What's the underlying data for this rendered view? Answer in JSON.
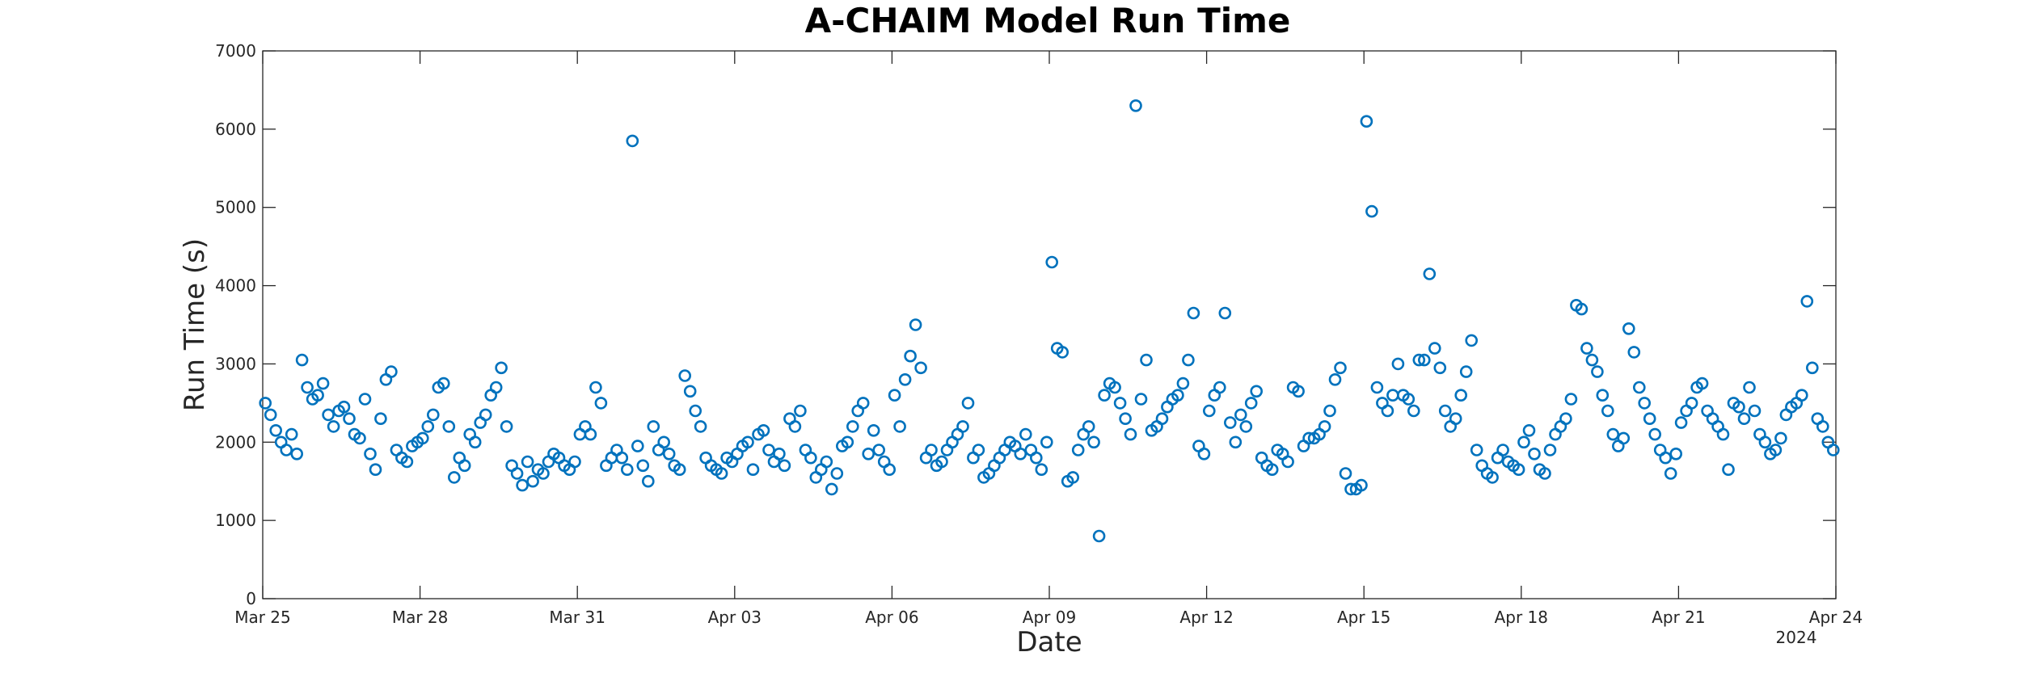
{
  "chart_data": {
    "type": "scatter",
    "title": "A-CHAIM Model Run Time",
    "xlabel": "Date",
    "ylabel": "Run Time (s)",
    "year_label": "2024",
    "xlim": [
      "2024-03-25",
      "2024-04-24"
    ],
    "ylim": [
      0,
      7000
    ],
    "x_ticks": [
      "Mar 25",
      "Mar 28",
      "Mar 31",
      "Apr 03",
      "Apr 06",
      "Apr 09",
      "Apr 12",
      "Apr 15",
      "Apr 18",
      "Apr 21",
      "Apr 24"
    ],
    "y_ticks": [
      "0",
      "1000",
      "2000",
      "3000",
      "4000",
      "5000",
      "6000",
      "7000"
    ],
    "marker": "circle",
    "marker_color": "#0072BD",
    "grid": false,
    "x": [
      "2024-03-25",
      "2024-03-25",
      "2024-03-25",
      "2024-03-25",
      "2024-03-25",
      "2024-03-25",
      "2024-03-25",
      "2024-03-25",
      "2024-03-25",
      "2024-03-25",
      "2024-03-26",
      "2024-03-26",
      "2024-03-26",
      "2024-03-26",
      "2024-03-26",
      "2024-03-26",
      "2024-03-26",
      "2024-03-26",
      "2024-03-26",
      "2024-03-26",
      "2024-03-27",
      "2024-03-27",
      "2024-03-27",
      "2024-03-27",
      "2024-03-27",
      "2024-03-27",
      "2024-03-27",
      "2024-03-27",
      "2024-03-27",
      "2024-03-27",
      "2024-03-28",
      "2024-03-28",
      "2024-03-28",
      "2024-03-28",
      "2024-03-28",
      "2024-03-28",
      "2024-03-28",
      "2024-03-28",
      "2024-03-28",
      "2024-03-28",
      "2024-03-29",
      "2024-03-29",
      "2024-03-29",
      "2024-03-29",
      "2024-03-29",
      "2024-03-29",
      "2024-03-29",
      "2024-03-29",
      "2024-03-29",
      "2024-03-29",
      "2024-03-30",
      "2024-03-30",
      "2024-03-30",
      "2024-03-30",
      "2024-03-30",
      "2024-03-30",
      "2024-03-30",
      "2024-03-30",
      "2024-03-30",
      "2024-03-30",
      "2024-03-31",
      "2024-03-31",
      "2024-03-31",
      "2024-03-31",
      "2024-03-31",
      "2024-03-31",
      "2024-03-31",
      "2024-03-31",
      "2024-03-31",
      "2024-03-31",
      "2024-04-01",
      "2024-04-01",
      "2024-04-01",
      "2024-04-01",
      "2024-04-01",
      "2024-04-01",
      "2024-04-01",
      "2024-04-01",
      "2024-04-01",
      "2024-04-01",
      "2024-04-02",
      "2024-04-02",
      "2024-04-02",
      "2024-04-02",
      "2024-04-02",
      "2024-04-02",
      "2024-04-02",
      "2024-04-02",
      "2024-04-02",
      "2024-04-02",
      "2024-04-03",
      "2024-04-03",
      "2024-04-03",
      "2024-04-03",
      "2024-04-03",
      "2024-04-03",
      "2024-04-03",
      "2024-04-03",
      "2024-04-03",
      "2024-04-03",
      "2024-04-04",
      "2024-04-04",
      "2024-04-04",
      "2024-04-04",
      "2024-04-04",
      "2024-04-04",
      "2024-04-04",
      "2024-04-04",
      "2024-04-04",
      "2024-04-04",
      "2024-04-05",
      "2024-04-05",
      "2024-04-05",
      "2024-04-05",
      "2024-04-05",
      "2024-04-05",
      "2024-04-05",
      "2024-04-05",
      "2024-04-05",
      "2024-04-05",
      "2024-04-06",
      "2024-04-06",
      "2024-04-06",
      "2024-04-06",
      "2024-04-06",
      "2024-04-06",
      "2024-04-06",
      "2024-04-06",
      "2024-04-06",
      "2024-04-06",
      "2024-04-07",
      "2024-04-07",
      "2024-04-07",
      "2024-04-07",
      "2024-04-07",
      "2024-04-07",
      "2024-04-07",
      "2024-04-07",
      "2024-04-07",
      "2024-04-07",
      "2024-04-08",
      "2024-04-08",
      "2024-04-08",
      "2024-04-08",
      "2024-04-08",
      "2024-04-08",
      "2024-04-08",
      "2024-04-08",
      "2024-04-08",
      "2024-04-08",
      "2024-04-09",
      "2024-04-09",
      "2024-04-09",
      "2024-04-09",
      "2024-04-09",
      "2024-04-09",
      "2024-04-09",
      "2024-04-09",
      "2024-04-09",
      "2024-04-09",
      "2024-04-10",
      "2024-04-10",
      "2024-04-10",
      "2024-04-10",
      "2024-04-10",
      "2024-04-10",
      "2024-04-10",
      "2024-04-10",
      "2024-04-10",
      "2024-04-10",
      "2024-04-11",
      "2024-04-11",
      "2024-04-11",
      "2024-04-11",
      "2024-04-11",
      "2024-04-11",
      "2024-04-11",
      "2024-04-11",
      "2024-04-11",
      "2024-04-11",
      "2024-04-12",
      "2024-04-12",
      "2024-04-12",
      "2024-04-12",
      "2024-04-12",
      "2024-04-12",
      "2024-04-12",
      "2024-04-12",
      "2024-04-12",
      "2024-04-12",
      "2024-04-13",
      "2024-04-13",
      "2024-04-13",
      "2024-04-13",
      "2024-04-13",
      "2024-04-13",
      "2024-04-13",
      "2024-04-13",
      "2024-04-13",
      "2024-04-13",
      "2024-04-14",
      "2024-04-14",
      "2024-04-14",
      "2024-04-14",
      "2024-04-14",
      "2024-04-14",
      "2024-04-14",
      "2024-04-14",
      "2024-04-14",
      "2024-04-14",
      "2024-04-15",
      "2024-04-15",
      "2024-04-15",
      "2024-04-15",
      "2024-04-15",
      "2024-04-15",
      "2024-04-15",
      "2024-04-15",
      "2024-04-15",
      "2024-04-15",
      "2024-04-16",
      "2024-04-16",
      "2024-04-16",
      "2024-04-16",
      "2024-04-16",
      "2024-04-16",
      "2024-04-16",
      "2024-04-16",
      "2024-04-16",
      "2024-04-16",
      "2024-04-17",
      "2024-04-17",
      "2024-04-17",
      "2024-04-17",
      "2024-04-17",
      "2024-04-17",
      "2024-04-17",
      "2024-04-17",
      "2024-04-17",
      "2024-04-17",
      "2024-04-18",
      "2024-04-18",
      "2024-04-18",
      "2024-04-18",
      "2024-04-18",
      "2024-04-18",
      "2024-04-18",
      "2024-04-18",
      "2024-04-18",
      "2024-04-18",
      "2024-04-19",
      "2024-04-19",
      "2024-04-19",
      "2024-04-19",
      "2024-04-19",
      "2024-04-19",
      "2024-04-19",
      "2024-04-19",
      "2024-04-19",
      "2024-04-19",
      "2024-04-20",
      "2024-04-20",
      "2024-04-20",
      "2024-04-20",
      "2024-04-20",
      "2024-04-20",
      "2024-04-20",
      "2024-04-20",
      "2024-04-20",
      "2024-04-20",
      "2024-04-21",
      "2024-04-21",
      "2024-04-21",
      "2024-04-21",
      "2024-04-21",
      "2024-04-21",
      "2024-04-21",
      "2024-04-21",
      "2024-04-21",
      "2024-04-21",
      "2024-04-22",
      "2024-04-22",
      "2024-04-22",
      "2024-04-22",
      "2024-04-22",
      "2024-04-22",
      "2024-04-22",
      "2024-04-22",
      "2024-04-22",
      "2024-04-22",
      "2024-04-23",
      "2024-04-23",
      "2024-04-23",
      "2024-04-23",
      "2024-04-23",
      "2024-04-23",
      "2024-04-23",
      "2024-04-23",
      "2024-04-23",
      "2024-04-23"
    ],
    "y": [
      2500,
      2350,
      2150,
      2000,
      1900,
      2100,
      1850,
      3050,
      2700,
      2550,
      2600,
      2750,
      2350,
      2200,
      2400,
      2450,
      2300,
      2100,
      2050,
      2550,
      1850,
      1650,
      2300,
      2800,
      2900,
      1900,
      1800,
      1750,
      1950,
      2000,
      2050,
      2200,
      2350,
      2700,
      2750,
      2200,
      1550,
      1800,
      1700,
      2100,
      2000,
      2250,
      2350,
      2600,
      2700,
      2950,
      2200,
      1700,
      1600,
      1450,
      1750,
      1500,
      1650,
      1600,
      1750,
      1850,
      1800,
      1700,
      1650,
      1750,
      2100,
      2200,
      2100,
      2700,
      2500,
      1700,
      1800,
      1900,
      1800,
      1650,
      5850,
      1950,
      1700,
      1500,
      2200,
      1900,
      2000,
      1850,
      1700,
      1650,
      2850,
      2650,
      2400,
      2200,
      1800,
      1700,
      1650,
      1600,
      1800,
      1750,
      1850,
      1950,
      2000,
      1650,
      2100,
      2150,
      1900,
      1750,
      1850,
      1700,
      2300,
      2200,
      2400,
      1900,
      1800,
      1550,
      1650,
      1750,
      1400,
      1600,
      1950,
      2000,
      2200,
      2400,
      2500,
      1850,
      2150,
      1900,
      1750,
      1650,
      2600,
      2200,
      2800,
      3100,
      3500,
      2950,
      1800,
      1900,
      1700,
      1750,
      1900,
      2000,
      2100,
      2200,
      2500,
      1800,
      1900,
      1550,
      1600,
      1700,
      1800,
      1900,
      2000,
      1950,
      1850,
      2100,
      1900,
      1800,
      1650,
      2000,
      4300,
      3200,
      3150,
      1500,
      1550,
      1900,
      2100,
      2200,
      2000,
      800,
      2600,
      2750,
      2700,
      2500,
      2300,
      2100,
      6300,
      2550,
      3050,
      2150,
      2200,
      2300,
      2450,
      2550,
      2600,
      2750,
      3050,
      3650,
      1950,
      1850,
      2400,
      2600,
      2700,
      3650,
      2250,
      2000,
      2350,
      2200,
      2500,
      2650,
      1800,
      1700,
      1650,
      1900,
      1850,
      1750,
      2700,
      2650,
      1950,
      2050,
      2050,
      2100,
      2200,
      2400,
      2800,
      2950,
      1600,
      1400,
      1400,
      1450,
      6100,
      4950,
      2700,
      2500,
      2400,
      2600,
      3000,
      2600,
      2550,
      2400,
      3050,
      3050,
      4150,
      3200,
      2950,
      2400,
      2200,
      2300,
      2600,
      2900,
      3300,
      1900,
      1700,
      1600,
      1550,
      1800,
      1900,
      1750,
      1700,
      1650,
      2000,
      2150,
      1850,
      1650,
      1600,
      1900,
      2100,
      2200,
      2300,
      2550,
      3750,
      3700,
      3200,
      3050,
      2900,
      2600,
      2400,
      2100,
      1950,
      2050,
      3450,
      3150,
      2700,
      2500,
      2300,
      2100,
      1900,
      1800,
      1600,
      1850,
      2250,
      2400,
      2500,
      2700,
      2750,
      2400,
      2300,
      2200,
      2100,
      1650,
      2500,
      2450,
      2300,
      2700,
      2400,
      2100,
      2000,
      1850,
      1900,
      2050,
      2350,
      2450,
      2500,
      2600,
      3800,
      2950,
      2300,
      2200,
      2000,
      1900
    ]
  }
}
